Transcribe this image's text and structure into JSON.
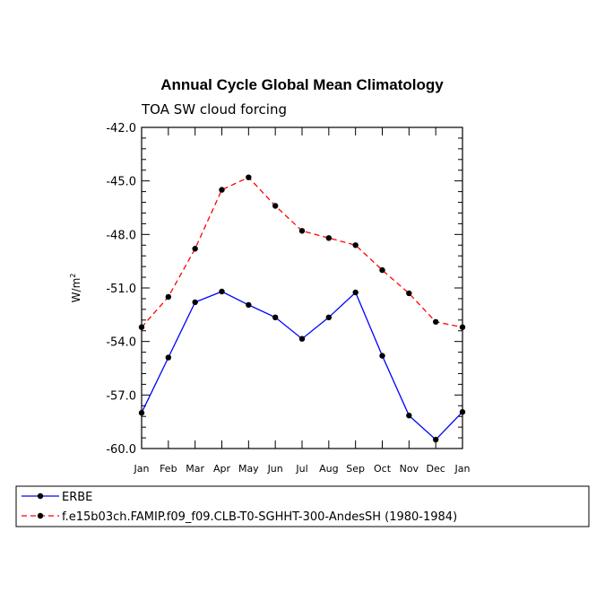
{
  "chart_data": {
    "type": "line",
    "title": "Annual Cycle Global Mean Climatology",
    "subtitle": "TOA SW cloud forcing",
    "xlabel": "",
    "ylabel": "W/m",
    "ylabel_superscript": "2",
    "categories": [
      "Jan",
      "Feb",
      "Mar",
      "Apr",
      "May",
      "Jun",
      "Jul",
      "Aug",
      "Sep",
      "Oct",
      "Nov",
      "Dec",
      "Jan"
    ],
    "ylim": [
      -60.0,
      -42.0
    ],
    "yticks": [
      "-60.0",
      "-57.0",
      "-54.0",
      "-51.0",
      "-48.0",
      "-45.0",
      "-42.0"
    ],
    "grid": false,
    "legend_position": "bottom",
    "series": [
      {
        "name": "ERBE",
        "color": "#0000ff",
        "dash": "solid",
        "values": [
          -58.0,
          -54.9,
          -51.8,
          -51.2,
          -51.95,
          -52.65,
          -53.85,
          -52.65,
          -51.25,
          -54.8,
          -58.15,
          -59.5,
          -57.95
        ]
      },
      {
        "name": "f.e15b03ch.FAMIP.f09_f09.CLB-T0-SGHHT-300-AndesSH (1980-1984)",
        "color": "#ff0000",
        "dash": "dashed",
        "values": [
          -53.2,
          -51.5,
          -48.8,
          -45.5,
          -44.8,
          -46.4,
          -47.8,
          -48.2,
          -48.6,
          -50.0,
          -51.3,
          -52.9,
          -53.2
        ]
      }
    ]
  }
}
